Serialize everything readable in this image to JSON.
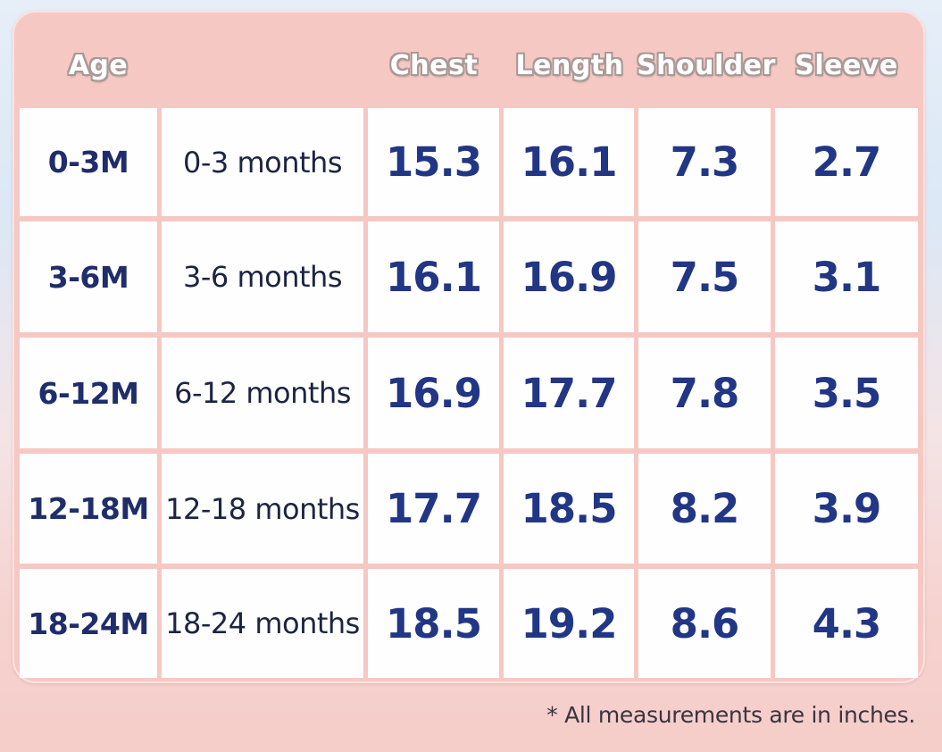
{
  "header": {
    "age": "Age",
    "chest": "Chest",
    "length": "Length",
    "shoulder": "Shoulder",
    "sleeve": "Sleeve"
  },
  "rows": [
    {
      "code": "0-3M",
      "desc": "0-3 months",
      "chest": "15.3",
      "length": "16.1",
      "shoulder": "7.3",
      "sleeve": "2.7"
    },
    {
      "code": "3-6M",
      "desc": "3-6 months",
      "chest": "16.1",
      "length": "16.9",
      "shoulder": "7.5",
      "sleeve": "3.1"
    },
    {
      "code": "6-12M",
      "desc": "6-12 months",
      "chest": "16.9",
      "length": "17.7",
      "shoulder": "7.8",
      "sleeve": "3.5"
    },
    {
      "code": "12-18M",
      "desc": "12-18 months",
      "chest": "17.7",
      "length": "18.5",
      "shoulder": "8.2",
      "sleeve": "3.9"
    },
    {
      "code": "18-24M",
      "desc": "18-24 months",
      "chest": "18.5",
      "length": "19.2",
      "shoulder": "8.6",
      "sleeve": "4.3"
    }
  ],
  "footnote": "* All measurements are in inches.",
  "colors": {
    "panel": "#f6c8c4",
    "cell": "#fffefe",
    "number_text": "#213684",
    "header_text": "#ffffff"
  }
}
